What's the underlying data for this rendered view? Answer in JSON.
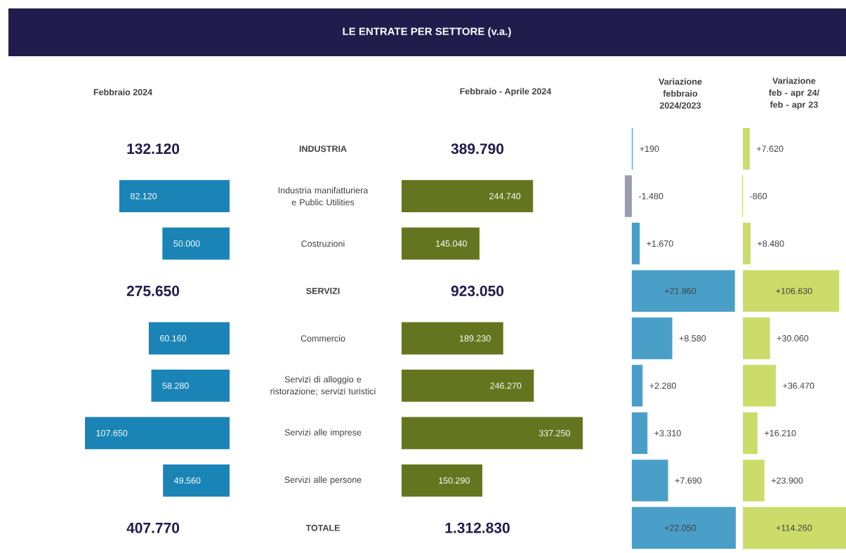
{
  "chart_data": [
    {
      "type": "bar",
      "orientation": "horizontal",
      "title": "Febbraio 2024",
      "categories": [
        "INDUSTRIA",
        "Industria manifatturiera e Public Utilities",
        "Costruzioni",
        "SERVIZI",
        "Commercio",
        "Servizi di alloggio e ristorazione; servizi turistici",
        "Servizi alle imprese",
        "Servizi alle persone",
        "TOTALE"
      ],
      "values": [
        null,
        82120,
        50000,
        null,
        60160,
        58280,
        107650,
        49560,
        null
      ],
      "value_labels": [
        null,
        "82.120",
        "50.000",
        null,
        "60.160",
        "58.280",
        "107.650",
        "49.560",
        null
      ],
      "color": "#1a84b6",
      "annotations": [
        "132.120",
        "275.650",
        "407.770"
      ]
    },
    {
      "type": "bar",
      "orientation": "horizontal",
      "title": "LE ENTRATE PER SETTORE (v.a.)",
      "subtitle": "Febbraio  - Aprile 2024",
      "categories": [
        null,
        null,
        null,
        null,
        null,
        null,
        null,
        null,
        null
      ],
      "values": [
        null,
        244740,
        145040,
        null,
        189230,
        246270,
        337250,
        150290,
        null
      ],
      "value_labels": [
        null,
        "244.740",
        "145.040",
        null,
        "189.230",
        "246.270",
        "337.250",
        "150.290",
        null
      ],
      "color": "#65751f",
      "annotations": [
        "389.790",
        "923.050",
        "1.312.830"
      ]
    },
    {
      "type": "bar",
      "orientation": "horizontal",
      "title": "Variazione febbraio 2024/2023",
      "categories": [
        null,
        null,
        null,
        null,
        null,
        null,
        null,
        null,
        null
      ],
      "values": [
        190,
        -1480,
        1670,
        21860,
        8580,
        2280,
        3310,
        7690,
        22050
      ],
      "value_labels": [
        "+190",
        "-1.480",
        "+1.670",
        "+21.860",
        "+8.580",
        "+2.280",
        "+3.310",
        "+7.690",
        "+22.050"
      ],
      "colors": [
        "#4a9fc8",
        "#9c9cb0",
        "#4a9fc8",
        "#4a9fc8",
        "#4a9fc8",
        "#4a9fc8",
        "#4a9fc8",
        "#4a9fc8",
        "#4a9fc8"
      ]
    },
    {
      "type": "bar",
      "orientation": "horizontal",
      "title": "Variazione feb - apr 24/ feb - apr 23",
      "categories": [
        null,
        null,
        null,
        null,
        null,
        null,
        null,
        null,
        null
      ],
      "values": [
        7620,
        -860,
        8480,
        106630,
        30060,
        36470,
        16210,
        23900,
        114260
      ],
      "value_labels": [
        "+7.620",
        "-860",
        "+8.480",
        "+106.630",
        "+30.060",
        "+36.470",
        "+16.210",
        "+23.900",
        "+114.260"
      ],
      "color": "#cbdc6a"
    }
  ]
}
